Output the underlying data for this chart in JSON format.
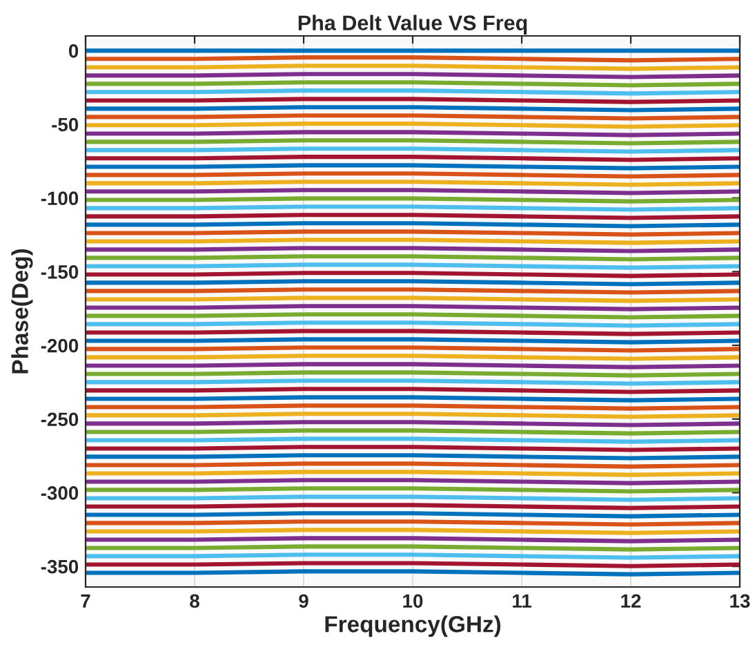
{
  "chart_data": {
    "type": "line",
    "title": "Pha Delt Value VS Freq",
    "xlabel": "Frequency(GHz)",
    "ylabel": "Phase(Deg)",
    "x": [
      7,
      8,
      9,
      10,
      11,
      12,
      13
    ],
    "xlim": [
      7,
      13
    ],
    "xticks": [
      7,
      8,
      9,
      10,
      11,
      12,
      13
    ],
    "ylim": [
      -364,
      10
    ],
    "yticks": [
      -350,
      -300,
      -250,
      -200,
      -150,
      -100,
      -50,
      0
    ],
    "grid": "x",
    "marker": "none",
    "line_style": "solid",
    "series": [
      {
        "color": "#0072bd",
        "values": [
          0,
          0,
          0,
          0,
          0,
          0,
          0
        ]
      },
      {
        "color": "#d95319",
        "values": [
          -5.6,
          -5.6,
          -4.6,
          -4.6,
          -5.6,
          -6.6,
          -5.6
        ]
      },
      {
        "color": "#edb120",
        "values": [
          -11.3,
          -11.3,
          -10.3,
          -10.3,
          -11.3,
          -12.3,
          -11.3
        ]
      },
      {
        "color": "#7e2f8e",
        "values": [
          -16.9,
          -16.9,
          -15.9,
          -15.9,
          -16.9,
          -17.9,
          -16.9
        ]
      },
      {
        "color": "#77ac30",
        "values": [
          -22.5,
          -22.5,
          -21.5,
          -21.5,
          -22.5,
          -23.5,
          -22.5
        ]
      },
      {
        "color": "#4dbeee",
        "values": [
          -28.1,
          -28.1,
          -27.1,
          -27.1,
          -28.1,
          -29.1,
          -28.1
        ]
      },
      {
        "color": "#a2142f",
        "values": [
          -33.8,
          -33.8,
          -32.8,
          -32.8,
          -33.8,
          -34.8,
          -33.8
        ]
      },
      {
        "color": "#0072bd",
        "values": [
          -39.4,
          -39.4,
          -38.4,
          -38.4,
          -39.4,
          -40.4,
          -39.4
        ]
      },
      {
        "color": "#d95319",
        "values": [
          -45,
          -45,
          -44,
          -44,
          -45,
          -46,
          -45
        ]
      },
      {
        "color": "#edb120",
        "values": [
          -50.6,
          -50.6,
          -49.6,
          -49.6,
          -50.6,
          -51.6,
          -50.6
        ]
      },
      {
        "color": "#7e2f8e",
        "values": [
          -56.3,
          -56.3,
          -55.3,
          -55.3,
          -56.3,
          -57.3,
          -56.3
        ]
      },
      {
        "color": "#77ac30",
        "values": [
          -61.9,
          -61.9,
          -60.9,
          -60.9,
          -61.9,
          -62.9,
          -61.9
        ]
      },
      {
        "color": "#4dbeee",
        "values": [
          -67.5,
          -67.5,
          -66.5,
          -66.5,
          -67.5,
          -68.5,
          -67.5
        ]
      },
      {
        "color": "#a2142f",
        "values": [
          -73.1,
          -73.1,
          -72.1,
          -72.1,
          -73.1,
          -74.1,
          -73.1
        ]
      },
      {
        "color": "#0072bd",
        "values": [
          -78.8,
          -78.8,
          -77.8,
          -77.8,
          -78.8,
          -79.8,
          -78.8
        ]
      },
      {
        "color": "#d95319",
        "values": [
          -84.4,
          -84.4,
          -83.4,
          -83.4,
          -84.4,
          -85.4,
          -84.4
        ]
      },
      {
        "color": "#edb120",
        "values": [
          -90,
          -90,
          -89,
          -89,
          -90,
          -91,
          -90
        ]
      },
      {
        "color": "#7e2f8e",
        "values": [
          -95.6,
          -95.6,
          -94.6,
          -94.6,
          -95.6,
          -96.6,
          -95.6
        ]
      },
      {
        "color": "#77ac30",
        "values": [
          -101.3,
          -101.3,
          -100.3,
          -100.3,
          -101.3,
          -102.3,
          -101.3
        ]
      },
      {
        "color": "#4dbeee",
        "values": [
          -106.9,
          -106.9,
          -105.9,
          -105.9,
          -106.9,
          -107.9,
          -106.9
        ]
      },
      {
        "color": "#a2142f",
        "values": [
          -112.5,
          -112.5,
          -111.5,
          -111.5,
          -112.5,
          -113.5,
          -112.5
        ]
      },
      {
        "color": "#0072bd",
        "values": [
          -118.1,
          -118.1,
          -117.1,
          -117.1,
          -118.1,
          -119.1,
          -118.1
        ]
      },
      {
        "color": "#d95319",
        "values": [
          -123.8,
          -123.8,
          -122.8,
          -122.8,
          -123.8,
          -124.8,
          -123.8
        ]
      },
      {
        "color": "#edb120",
        "values": [
          -129.4,
          -129.4,
          -128.4,
          -128.4,
          -129.4,
          -130.4,
          -129.4
        ]
      },
      {
        "color": "#7e2f8e",
        "values": [
          -135,
          -135,
          -134,
          -134,
          -135,
          -136,
          -135
        ]
      },
      {
        "color": "#77ac30",
        "values": [
          -140.6,
          -140.6,
          -139.6,
          -139.6,
          -140.6,
          -141.6,
          -140.6
        ]
      },
      {
        "color": "#4dbeee",
        "values": [
          -146.3,
          -146.3,
          -145.3,
          -145.3,
          -146.3,
          -147.3,
          -146.3
        ]
      },
      {
        "color": "#a2142f",
        "values": [
          -151.9,
          -151.9,
          -150.9,
          -150.9,
          -151.9,
          -152.9,
          -151.9
        ]
      },
      {
        "color": "#0072bd",
        "values": [
          -157.5,
          -157.5,
          -156.5,
          -156.5,
          -157.5,
          -158.5,
          -157.5
        ]
      },
      {
        "color": "#d95319",
        "values": [
          -163.1,
          -163.1,
          -162.1,
          -162.1,
          -163.1,
          -164.1,
          -163.1
        ]
      },
      {
        "color": "#edb120",
        "values": [
          -168.8,
          -168.8,
          -167.8,
          -167.8,
          -168.8,
          -169.8,
          -168.8
        ]
      },
      {
        "color": "#7e2f8e",
        "values": [
          -174.4,
          -174.4,
          -173.4,
          -173.4,
          -174.4,
          -175.4,
          -174.4
        ]
      },
      {
        "color": "#77ac30",
        "values": [
          -180,
          -180,
          -179,
          -179,
          -180,
          -181,
          -180
        ]
      },
      {
        "color": "#4dbeee",
        "values": [
          -185.6,
          -185.6,
          -184.6,
          -184.6,
          -185.6,
          -186.6,
          -185.6
        ]
      },
      {
        "color": "#a2142f",
        "values": [
          -191.3,
          -191.3,
          -190.3,
          -190.3,
          -191.3,
          -192.3,
          -191.3
        ]
      },
      {
        "color": "#0072bd",
        "values": [
          -196.9,
          -196.9,
          -195.9,
          -195.9,
          -196.9,
          -197.9,
          -196.9
        ]
      },
      {
        "color": "#d95319",
        "values": [
          -202.5,
          -202.5,
          -201.5,
          -201.5,
          -202.5,
          -203.5,
          -202.5
        ]
      },
      {
        "color": "#edb120",
        "values": [
          -208.1,
          -208.1,
          -207.1,
          -207.1,
          -208.1,
          -209.1,
          -208.1
        ]
      },
      {
        "color": "#7e2f8e",
        "values": [
          -213.8,
          -213.8,
          -212.8,
          -212.8,
          -213.8,
          -214.8,
          -213.8
        ]
      },
      {
        "color": "#77ac30",
        "values": [
          -219.4,
          -219.4,
          -218.4,
          -218.4,
          -219.4,
          -220.4,
          -219.4
        ]
      },
      {
        "color": "#4dbeee",
        "values": [
          -225,
          -225,
          -224,
          -224,
          -225,
          -226,
          -225
        ]
      },
      {
        "color": "#a2142f",
        "values": [
          -230.6,
          -230.6,
          -229.6,
          -229.6,
          -230.6,
          -231.6,
          -230.6
        ]
      },
      {
        "color": "#0072bd",
        "values": [
          -236.3,
          -236.3,
          -235.3,
          -235.3,
          -236.3,
          -237.3,
          -236.3
        ]
      },
      {
        "color": "#d95319",
        "values": [
          -241.9,
          -241.9,
          -240.9,
          -240.9,
          -241.9,
          -242.9,
          -241.9
        ]
      },
      {
        "color": "#edb120",
        "values": [
          -247.5,
          -247.5,
          -246.5,
          -246.5,
          -247.5,
          -248.5,
          -247.5
        ]
      },
      {
        "color": "#7e2f8e",
        "values": [
          -253.1,
          -253.1,
          -252.1,
          -252.1,
          -253.1,
          -254.1,
          -253.1
        ]
      },
      {
        "color": "#77ac30",
        "values": [
          -258.8,
          -258.8,
          -257.8,
          -257.8,
          -258.8,
          -259.8,
          -258.8
        ]
      },
      {
        "color": "#4dbeee",
        "values": [
          -264.4,
          -264.4,
          -263.4,
          -263.4,
          -264.4,
          -265.4,
          -264.4
        ]
      },
      {
        "color": "#a2142f",
        "values": [
          -270,
          -270,
          -269,
          -269,
          -270,
          -271,
          -270
        ]
      },
      {
        "color": "#0072bd",
        "values": [
          -275.6,
          -275.6,
          -274.6,
          -274.6,
          -275.6,
          -276.6,
          -275.6
        ]
      },
      {
        "color": "#d95319",
        "values": [
          -281.3,
          -281.3,
          -280.3,
          -280.3,
          -281.3,
          -282.3,
          -281.3
        ]
      },
      {
        "color": "#edb120",
        "values": [
          -286.9,
          -286.9,
          -285.9,
          -285.9,
          -286.9,
          -287.9,
          -286.9
        ]
      },
      {
        "color": "#7e2f8e",
        "values": [
          -292.5,
          -292.5,
          -291.5,
          -291.5,
          -292.5,
          -293.5,
          -292.5
        ]
      },
      {
        "color": "#77ac30",
        "values": [
          -298.1,
          -298.1,
          -297.1,
          -297.1,
          -298.1,
          -299.1,
          -298.1
        ]
      },
      {
        "color": "#4dbeee",
        "values": [
          -303.8,
          -303.8,
          -302.8,
          -302.8,
          -303.8,
          -304.8,
          -303.8
        ]
      },
      {
        "color": "#a2142f",
        "values": [
          -309.4,
          -309.4,
          -308.4,
          -308.4,
          -309.4,
          -310.4,
          -309.4
        ]
      },
      {
        "color": "#0072bd",
        "values": [
          -315,
          -315,
          -314,
          -314,
          -315,
          -316,
          -315
        ]
      },
      {
        "color": "#d95319",
        "values": [
          -320.6,
          -320.6,
          -319.6,
          -319.6,
          -320.6,
          -321.6,
          -320.6
        ]
      },
      {
        "color": "#edb120",
        "values": [
          -326.3,
          -326.3,
          -325.3,
          -325.3,
          -326.3,
          -327.3,
          -326.3
        ]
      },
      {
        "color": "#7e2f8e",
        "values": [
          -331.9,
          -331.9,
          -330.9,
          -330.9,
          -331.9,
          -332.9,
          -331.9
        ]
      },
      {
        "color": "#77ac30",
        "values": [
          -337.5,
          -337.5,
          -336.5,
          -336.5,
          -337.5,
          -338.5,
          -337.5
        ]
      },
      {
        "color": "#4dbeee",
        "values": [
          -343.1,
          -343.1,
          -342.1,
          -342.1,
          -343.1,
          -344.1,
          -343.1
        ]
      },
      {
        "color": "#a2142f",
        "values": [
          -348.8,
          -348.8,
          -347.8,
          -347.8,
          -348.8,
          -349.8,
          -348.8
        ]
      },
      {
        "color": "#0072bd",
        "values": [
          -354.4,
          -354.4,
          -353.4,
          -353.4,
          -354.4,
          -355.4,
          -354.4
        ]
      }
    ]
  }
}
